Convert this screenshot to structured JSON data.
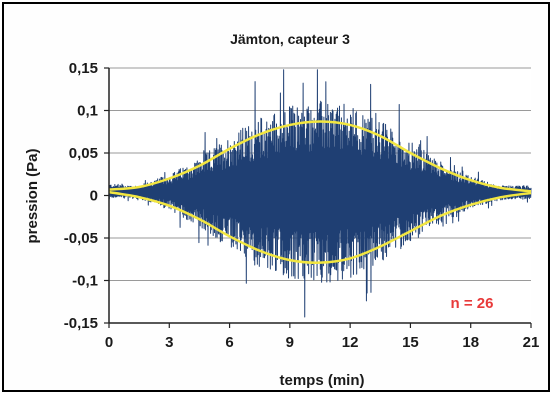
{
  "chart_data": {
    "type": "line",
    "title": "Jämton, capteur 3",
    "xlabel": "temps  (min)",
    "ylabel": "pression  (Pa)",
    "xlim": [
      0,
      21
    ],
    "ylim": [
      -0.15,
      0.15
    ],
    "x_ticks": [
      0,
      3,
      6,
      9,
      12,
      15,
      18,
      21
    ],
    "x_tick_labels": [
      "0",
      "3",
      "6",
      "9",
      "12",
      "15",
      "18",
      "21"
    ],
    "y_ticks": [
      0.15,
      0.1,
      0.05,
      0,
      -0.05,
      -0.1,
      -0.15
    ],
    "y_tick_labels": [
      "0,15",
      "0,1",
      "0,05",
      "0",
      "-0,05",
      "-0,1",
      "-0,15"
    ],
    "grid": "horizontal",
    "legend": "none",
    "annotation": "n = 26",
    "series": [
      {
        "role": "pressure signal",
        "color": "#1f3f73",
        "peak_amplitude_min": [
          0,
          0.015
        ],
        "peak_amplitude_max": [
          11.2,
          0.148
        ],
        "peak_amplitude_min_low": [
          9.2,
          -0.145
        ]
      },
      {
        "role": "upper envelope",
        "color": "#f2e640",
        "x": [
          0,
          1.5,
          3,
          4.5,
          6,
          7.5,
          9,
          10.5,
          12,
          13.5,
          15,
          16.5,
          18,
          19.5,
          21
        ],
        "values": [
          0.007,
          0.01,
          0.02,
          0.035,
          0.055,
          0.072,
          0.083,
          0.087,
          0.083,
          0.07,
          0.05,
          0.032,
          0.018,
          0.009,
          0.005
        ]
      },
      {
        "role": "lower envelope",
        "color": "#f2e640",
        "x": [
          0,
          1.5,
          3,
          4.5,
          6,
          7.5,
          9,
          10.5,
          12,
          13.5,
          15,
          16.5,
          18,
          19.5,
          21
        ],
        "values": [
          0.004,
          -0.002,
          -0.012,
          -0.028,
          -0.048,
          -0.065,
          -0.076,
          -0.079,
          -0.074,
          -0.06,
          -0.042,
          -0.024,
          -0.011,
          -0.002,
          0.003
        ]
      }
    ],
    "colors": {
      "plot_background": "#ffffff",
      "grid": "#9a9a9a",
      "annotation": "#e83a3a"
    }
  }
}
